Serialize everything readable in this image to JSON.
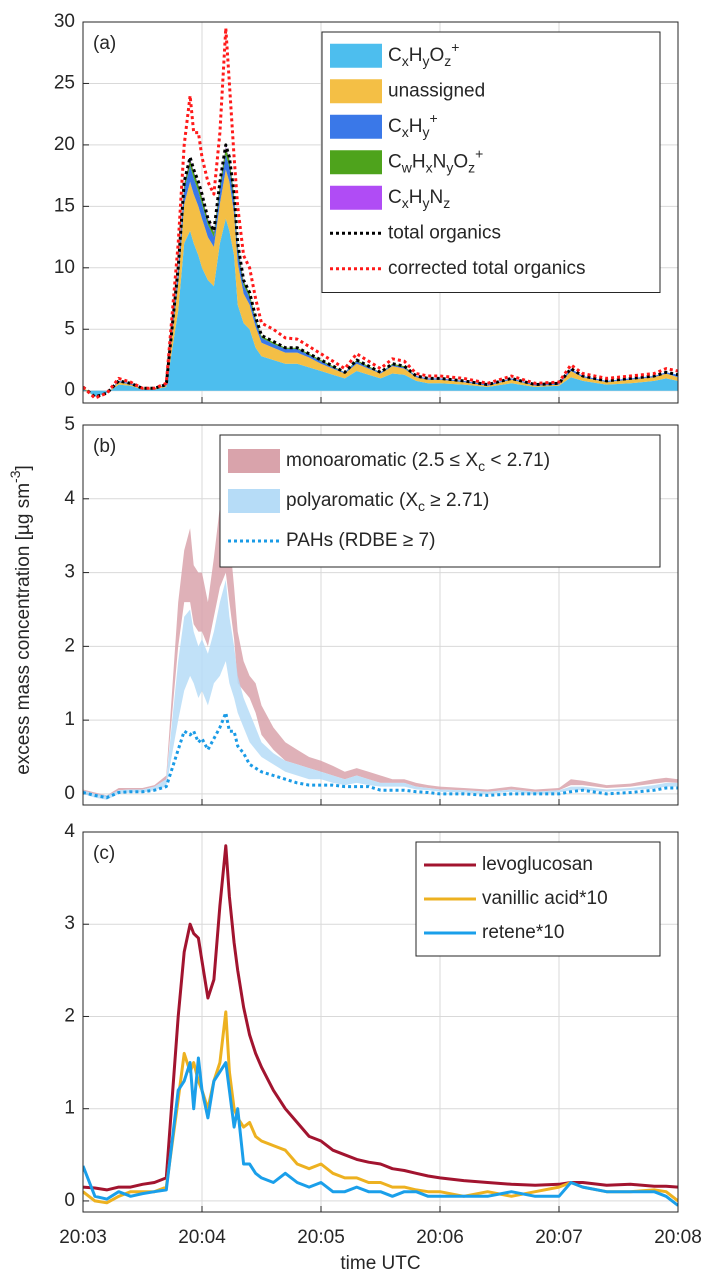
{
  "chart_data": [
    {
      "type": "area",
      "panel_label": "(a)",
      "legend": "upper right",
      "grid": true,
      "xlim": [
        3,
        8
      ],
      "ylim": [
        -1,
        30
      ],
      "yticks": [
        0,
        5,
        10,
        15,
        20,
        25,
        30
      ],
      "x": [
        3.0,
        3.1,
        3.2,
        3.3,
        3.4,
        3.5,
        3.6,
        3.7,
        3.8,
        3.85,
        3.9,
        3.93,
        3.97,
        4.0,
        4.05,
        4.1,
        4.15,
        4.2,
        4.23,
        4.27,
        4.3,
        4.35,
        4.4,
        4.45,
        4.5,
        4.6,
        4.7,
        4.8,
        4.9,
        5.0,
        5.1,
        5.2,
        5.3,
        5.4,
        5.5,
        5.6,
        5.7,
        5.8,
        5.9,
        6.0,
        6.2,
        6.4,
        6.6,
        6.8,
        7.0,
        7.1,
        7.2,
        7.4,
        7.6,
        7.8,
        7.9,
        8.0
      ],
      "series": [
        {
          "name": "CxHyOz+",
          "color": "#4dbeee",
          "mark": "stacked-area",
          "values": [
            0.2,
            -0.5,
            -0.2,
            0.5,
            0.4,
            0.1,
            0.1,
            0.3,
            6.5,
            12,
            13,
            12,
            11,
            10,
            9,
            8.5,
            12,
            14,
            13,
            11,
            7,
            5.5,
            5,
            3.5,
            2.8,
            2.5,
            2.2,
            2.2,
            1.9,
            1.6,
            1.3,
            1,
            1.6,
            1.3,
            1,
            1.4,
            1.3,
            0.8,
            0.6,
            0.6,
            0.5,
            0.3,
            0.6,
            0.3,
            0.4,
            1.1,
            0.8,
            0.5,
            0.6,
            0.8,
            1,
            0.8
          ]
        },
        {
          "name": "unassigned",
          "color": "#f4bf45",
          "mark": "stacked-area",
          "values": [
            0.1,
            0,
            0,
            0.2,
            0.1,
            0.1,
            0.1,
            0.1,
            2.3,
            3.2,
            4,
            4,
            4,
            4,
            3.5,
            3.2,
            3.2,
            4,
            4,
            3.4,
            3.4,
            2.4,
            2,
            1.7,
            1.1,
            1,
            0.9,
            0.9,
            0.8,
            0.6,
            0.5,
            0.4,
            0.6,
            0.5,
            0.4,
            0.6,
            0.5,
            0.3,
            0.3,
            0.3,
            0.2,
            0.1,
            0.3,
            0.1,
            0.1,
            0.5,
            0.3,
            0.2,
            0.3,
            0.3,
            0.4,
            0.3
          ]
        },
        {
          "name": "CxHy+",
          "color": "#3a78e8",
          "mark": "stacked-area",
          "values": [
            0,
            0,
            0,
            0.1,
            0.1,
            0,
            0,
            0.1,
            0.9,
            1.2,
            1.3,
            1.3,
            1.2,
            1.2,
            1,
            0.8,
            1.1,
            1.2,
            1.2,
            1,
            1,
            0.7,
            0.6,
            0.5,
            0.4,
            0.3,
            0.3,
            0.3,
            0.2,
            0.2,
            0.1,
            0.1,
            0.2,
            0.1,
            0.1,
            0.1,
            0.1,
            0.1,
            0.1,
            0.1,
            0.1,
            0.1,
            0.1,
            0.1,
            0.1,
            0.2,
            0.1,
            0.1,
            0.1,
            0.1,
            0.1,
            0.2
          ]
        },
        {
          "name": "CwHxNyOz+",
          "color": "#4ea31c",
          "mark": "stacked-area",
          "values": [
            0,
            0,
            0,
            0,
            0,
            0,
            0,
            0,
            0.2,
            0.4,
            0.5,
            0.5,
            0.5,
            0.5,
            0.4,
            0.4,
            0.5,
            0.6,
            0.6,
            0.5,
            0.4,
            0.3,
            0.3,
            0.2,
            0.15,
            0.15,
            0.1,
            0.1,
            0.1,
            0.1,
            0.1,
            0,
            0.1,
            0.1,
            0,
            0.1,
            0.1,
            0,
            0,
            0,
            0,
            0,
            0,
            0,
            0,
            0,
            0,
            0,
            0,
            0,
            0,
            0
          ]
        },
        {
          "name": "CxHyNz",
          "color": "#b04cf5",
          "mark": "stacked-area",
          "values": [
            0,
            0,
            0,
            0,
            0,
            0,
            0,
            0,
            0.1,
            0.1,
            0.1,
            0.1,
            0.1,
            0.1,
            0.1,
            0.1,
            0.1,
            0.1,
            0.1,
            0.1,
            0.1,
            0.1,
            0,
            0,
            0,
            0,
            0,
            0,
            0,
            0,
            0,
            0,
            0,
            0,
            0,
            0,
            0,
            0,
            0,
            0,
            0,
            0,
            0,
            0,
            0,
            0,
            0,
            0,
            0,
            0,
            0,
            0
          ]
        },
        {
          "name": "total organics",
          "color": "#000000",
          "mark": "dotted-line",
          "values": [
            0.3,
            -0.5,
            -0.2,
            0.8,
            0.6,
            0.2,
            0.2,
            0.5,
            10,
            17,
            19,
            18,
            17,
            16,
            14,
            13,
            17,
            20,
            19,
            16,
            12,
            9,
            8,
            6,
            4.5,
            4,
            3.5,
            3.5,
            3,
            2.5,
            2,
            1.5,
            2.5,
            2,
            1.5,
            2.2,
            2,
            1.2,
            1,
            1,
            0.8,
            0.5,
            1,
            0.5,
            0.6,
            1.8,
            1.2,
            0.8,
            1,
            1.2,
            1.5,
            1.3
          ]
        },
        {
          "name": "corrected total organics",
          "color": "#ff1a1a",
          "mark": "dotted-line",
          "values": [
            0.3,
            -0.6,
            -0.2,
            1.0,
            0.7,
            0.2,
            0.2,
            0.6,
            12,
            20,
            24,
            21,
            21,
            19,
            17,
            16,
            21,
            29.5,
            25,
            19,
            15,
            11,
            10,
            7.5,
            5.5,
            5,
            4.3,
            4.2,
            3.6,
            3,
            2.4,
            1.8,
            3,
            2.4,
            1.8,
            2.6,
            2.4,
            1.4,
            1.2,
            1.2,
            1,
            0.6,
            1.2,
            0.6,
            0.7,
            2.1,
            1.4,
            1,
            1.2,
            1.4,
            1.8,
            1.6
          ]
        }
      ]
    },
    {
      "type": "band",
      "panel_label": "(b)",
      "legend": "upper right",
      "grid": true,
      "ylabel": "excess mass concentration [µg sm-3]",
      "xlim": [
        3,
        8
      ],
      "ylim": [
        -0.15,
        5
      ],
      "yticks": [
        0,
        1,
        2,
        3,
        4,
        5
      ],
      "x": [
        3.0,
        3.1,
        3.2,
        3.3,
        3.4,
        3.5,
        3.6,
        3.7,
        3.8,
        3.85,
        3.9,
        3.93,
        3.97,
        4.0,
        4.05,
        4.1,
        4.15,
        4.2,
        4.23,
        4.27,
        4.3,
        4.35,
        4.4,
        4.45,
        4.5,
        4.6,
        4.7,
        4.8,
        4.9,
        5.0,
        5.1,
        5.2,
        5.3,
        5.4,
        5.5,
        5.6,
        5.7,
        5.8,
        5.9,
        6.0,
        6.2,
        6.4,
        6.6,
        6.8,
        7.0,
        7.1,
        7.2,
        7.4,
        7.6,
        7.8,
        7.9,
        8.0
      ],
      "series": [
        {
          "name": "monoaromatic (2.5 ≤ Xc < 2.71)",
          "color": "#d9a3ab",
          "mark": "band",
          "low": [
            0.04,
            -0.01,
            -0.05,
            0.05,
            0.06,
            0.06,
            0.1,
            0.2,
            2.0,
            2.6,
            2.6,
            2.3,
            2.2,
            2.2,
            2.0,
            2.4,
            2.8,
            3.0,
            2.6,
            2.1,
            1.5,
            1.4,
            1.3,
            1.1,
            0.8,
            0.6,
            0.45,
            0.4,
            0.35,
            0.3,
            0.25,
            0.2,
            0.25,
            0.2,
            0.15,
            0.15,
            0.15,
            0.1,
            0.08,
            0.06,
            0.05,
            0.03,
            0.06,
            0.03,
            0.05,
            0.12,
            0.12,
            0.08,
            0.1,
            0.14,
            0.16,
            0.15
          ],
          "high": [
            0.06,
            0.02,
            -0.02,
            0.08,
            0.08,
            0.08,
            0.12,
            0.25,
            2.6,
            3.3,
            3.6,
            3.1,
            3.0,
            3.0,
            2.6,
            3.2,
            3.9,
            4.2,
            3.5,
            2.8,
            2.2,
            1.8,
            1.6,
            1.5,
            1.2,
            0.9,
            0.7,
            0.6,
            0.5,
            0.45,
            0.38,
            0.3,
            0.35,
            0.3,
            0.25,
            0.2,
            0.2,
            0.15,
            0.12,
            0.1,
            0.08,
            0.06,
            0.1,
            0.06,
            0.08,
            0.2,
            0.18,
            0.12,
            0.14,
            0.2,
            0.22,
            0.2
          ]
        },
        {
          "name": "polyaromatic (Xc ≥ 2.71)",
          "color": "#b6dcf7",
          "mark": "band",
          "low": [
            0,
            -0.05,
            -0.08,
            0,
            0.02,
            0.02,
            0.05,
            0.1,
            1.0,
            1.4,
            1.6,
            1.5,
            1.3,
            1.4,
            1.2,
            1.5,
            1.6,
            1.8,
            1.5,
            1.3,
            1.1,
            0.9,
            0.7,
            0.6,
            0.5,
            0.4,
            0.3,
            0.25,
            0.2,
            0.2,
            0.15,
            0.12,
            0.15,
            0.12,
            0.1,
            0.1,
            0.1,
            0.06,
            0.05,
            0.03,
            0.02,
            0,
            0.03,
            0,
            0.02,
            0.05,
            0.05,
            0.03,
            0.05,
            0.07,
            0.1,
            0.1
          ],
          "high": [
            0.05,
            0,
            -0.02,
            0.05,
            0.06,
            0.06,
            0.1,
            0.2,
            1.8,
            2.4,
            2.5,
            2.2,
            2.0,
            2.1,
            1.9,
            2.2,
            2.6,
            2.9,
            2.4,
            2.0,
            1.6,
            1.3,
            1.1,
            0.9,
            0.7,
            0.55,
            0.45,
            0.4,
            0.35,
            0.3,
            0.25,
            0.2,
            0.25,
            0.2,
            0.15,
            0.15,
            0.15,
            0.1,
            0.08,
            0.06,
            0.05,
            0.03,
            0.06,
            0.03,
            0.05,
            0.1,
            0.1,
            0.06,
            0.08,
            0.12,
            0.15,
            0.15
          ]
        },
        {
          "name": "PAHs (RDBE ≥ 7)",
          "color": "#1a9be6",
          "mark": "dotted-line",
          "values": [
            0.02,
            -0.02,
            -0.05,
            0.02,
            0.03,
            0.03,
            0.05,
            0.1,
            0.6,
            0.85,
            0.8,
            0.85,
            0.7,
            0.75,
            0.6,
            0.75,
            0.9,
            1.1,
            0.85,
            0.85,
            0.65,
            0.55,
            0.4,
            0.35,
            0.3,
            0.25,
            0.2,
            0.15,
            0.12,
            0.12,
            0.12,
            0.1,
            0.1,
            0.1,
            0.05,
            0.05,
            0.05,
            0.03,
            0.02,
            0.0,
            0.0,
            -0.02,
            0.0,
            0.0,
            0.0,
            0.03,
            0.05,
            0.0,
            0.02,
            0.05,
            0.08,
            0.08
          ]
        }
      ]
    },
    {
      "type": "line",
      "panel_label": "(c)",
      "legend": "upper right",
      "grid": true,
      "xlabel": "time UTC",
      "xlim": [
        3,
        8
      ],
      "ylim": [
        -0.12,
        4
      ],
      "yticks": [
        0,
        1,
        2,
        3,
        4
      ],
      "xticks": [
        {
          "value": 3,
          "label": "20:03"
        },
        {
          "value": 4,
          "label": "20:04"
        },
        {
          "value": 5,
          "label": "20:05"
        },
        {
          "value": 6,
          "label": "20:06"
        },
        {
          "value": 7,
          "label": "20:07"
        },
        {
          "value": 8,
          "label": "20:08"
        }
      ],
      "x": [
        3.0,
        3.1,
        3.2,
        3.3,
        3.4,
        3.5,
        3.6,
        3.7,
        3.8,
        3.85,
        3.9,
        3.93,
        3.97,
        4.0,
        4.05,
        4.1,
        4.15,
        4.2,
        4.23,
        4.27,
        4.3,
        4.35,
        4.4,
        4.45,
        4.5,
        4.6,
        4.7,
        4.8,
        4.9,
        5.0,
        5.1,
        5.2,
        5.3,
        5.4,
        5.5,
        5.6,
        5.7,
        5.8,
        5.9,
        6.0,
        6.2,
        6.4,
        6.6,
        6.8,
        7.0,
        7.1,
        7.2,
        7.4,
        7.6,
        7.8,
        7.9,
        8.0
      ],
      "series": [
        {
          "name": "levoglucosan",
          "color": "#a2142f",
          "mark": "solid-line",
          "values": [
            0.15,
            0.14,
            0.12,
            0.15,
            0.15,
            0.18,
            0.2,
            0.25,
            2.0,
            2.7,
            3.0,
            2.9,
            2.85,
            2.6,
            2.2,
            2.4,
            3.2,
            3.85,
            3.3,
            2.8,
            2.5,
            2.1,
            1.8,
            1.6,
            1.45,
            1.2,
            1.0,
            0.85,
            0.7,
            0.65,
            0.55,
            0.5,
            0.45,
            0.42,
            0.4,
            0.35,
            0.33,
            0.3,
            0.27,
            0.25,
            0.22,
            0.2,
            0.18,
            0.17,
            0.18,
            0.2,
            0.2,
            0.17,
            0.18,
            0.16,
            0.16,
            0.15
          ]
        },
        {
          "name": "vanillic acid*10",
          "color": "#edb120",
          "mark": "solid-line",
          "values": [
            0.1,
            0.0,
            -0.02,
            0.05,
            0.1,
            0.1,
            0.1,
            0.15,
            1.1,
            1.6,
            1.4,
            1.5,
            1.3,
            1.2,
            1.0,
            1.3,
            1.5,
            2.05,
            1.4,
            1.0,
            0.9,
            0.8,
            0.85,
            0.7,
            0.65,
            0.6,
            0.55,
            0.4,
            0.35,
            0.4,
            0.3,
            0.25,
            0.25,
            0.2,
            0.2,
            0.15,
            0.15,
            0.12,
            0.1,
            0.1,
            0.05,
            0.1,
            0.05,
            0.1,
            0.15,
            0.2,
            0.15,
            0.1,
            0.1,
            0.12,
            0.1,
            0.0
          ]
        },
        {
          "name": "retene*10",
          "color": "#1a9fea",
          "mark": "solid-line",
          "values": [
            0.38,
            0.05,
            0.02,
            0.1,
            0.05,
            0.08,
            0.1,
            0.12,
            1.2,
            1.3,
            1.5,
            1.0,
            1.55,
            1.2,
            0.9,
            1.3,
            1.4,
            1.5,
            1.2,
            0.8,
            1.0,
            0.4,
            0.4,
            0.3,
            0.25,
            0.2,
            0.3,
            0.2,
            0.15,
            0.2,
            0.1,
            0.1,
            0.15,
            0.1,
            0.1,
            0.05,
            0.1,
            0.1,
            0.05,
            0.05,
            0.05,
            0.05,
            0.1,
            0.05,
            0.05,
            0.2,
            0.15,
            0.1,
            0.1,
            0.1,
            0.05,
            -0.05
          ]
        }
      ]
    }
  ]
}
